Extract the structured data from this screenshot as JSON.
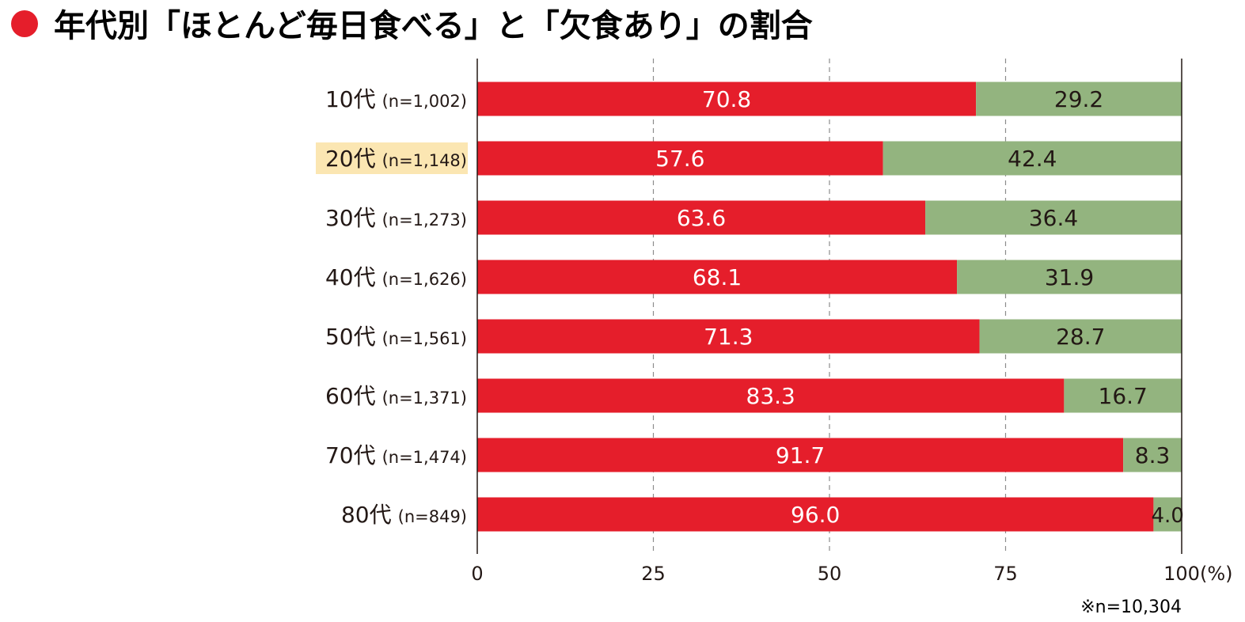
{
  "chart_data": {
    "type": "bar",
    "orientation": "horizontal",
    "stacked": true,
    "title": "年代別「ほとんど毎日食べる」と「欠食あり」の割合",
    "title_marker_color": "#e51e2b",
    "categories": [
      {
        "age": "10代",
        "n": "(n=1,002)",
        "highlight": false
      },
      {
        "age": "20代",
        "n": "(n=1,148)",
        "highlight": true
      },
      {
        "age": "30代",
        "n": "(n=1,273)",
        "highlight": false
      },
      {
        "age": "40代",
        "n": "(n=1,626)",
        "highlight": false
      },
      {
        "age": "50代",
        "n": "(n=1,561)",
        "highlight": false
      },
      {
        "age": "60代",
        "n": "(n=1,371)",
        "highlight": false
      },
      {
        "age": "70代",
        "n": "(n=1,474)",
        "highlight": false
      },
      {
        "age": "80代",
        "n": "(n=849)",
        "highlight": false
      }
    ],
    "series": [
      {
        "color": "#e51e2b",
        "label_color": "#ffffff",
        "values": [
          70.8,
          57.6,
          63.6,
          68.1,
          71.3,
          83.3,
          91.7,
          96.0
        ],
        "labels": [
          "70.8",
          "57.6",
          "63.6",
          "68.1",
          "71.3",
          "83.3",
          "91.7",
          "96.0"
        ]
      },
      {
        "color": "#93b47f",
        "label_color": "#231815",
        "values": [
          29.2,
          42.4,
          36.4,
          31.9,
          28.7,
          16.7,
          8.3,
          4.0
        ],
        "labels": [
          "29.2",
          "42.4",
          "36.4",
          "31.9",
          "28.7",
          "16.7",
          "8.3",
          "4.0"
        ]
      }
    ],
    "xlim": [
      0,
      100
    ],
    "xticks": [
      0,
      25,
      50,
      75,
      100
    ],
    "xtick_labels": [
      "0",
      "25",
      "50",
      "75",
      "100"
    ],
    "xunit": "(%)",
    "grid": "dashed vertical",
    "highlight_color": "#fbe6b2",
    "note": "※n=10,304"
  }
}
